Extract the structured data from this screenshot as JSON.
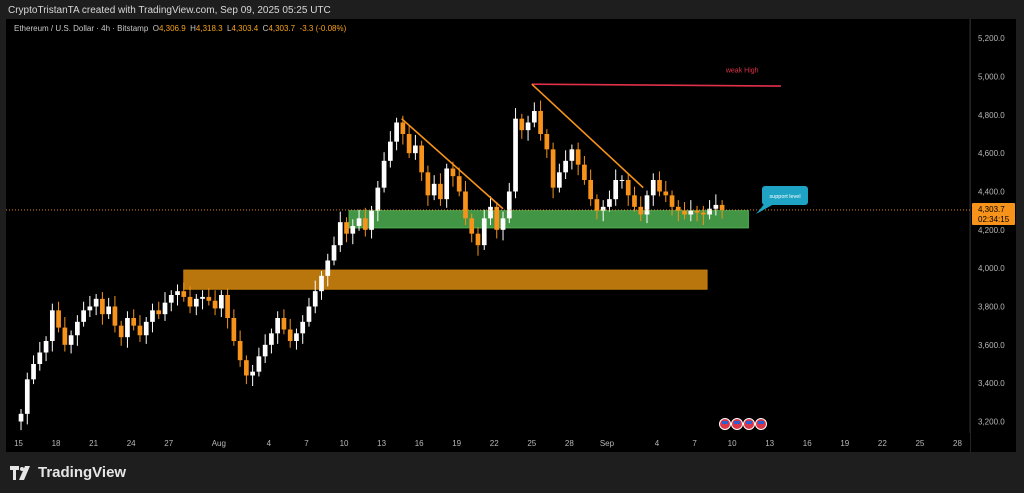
{
  "header": {
    "caption": "CryptoTristanTA created with TradingView.com, Sep 09, 2025 05:25 UTC"
  },
  "symbol": {
    "name": "Ethereum / U.S. Dollar · 4h · Bitstamp",
    "o_label": "O",
    "o": "4,306.9",
    "h_label": "H",
    "h": "4,318.3",
    "l_label": "L",
    "l": "4,303.4",
    "c_label": "C",
    "c": "4,303.7",
    "change": "-3.3 (-0.08%)"
  },
  "price_tag": {
    "price": "4,303.7",
    "countdown": "02:34:15"
  },
  "brand": {
    "name": "TradingView"
  },
  "colors": {
    "up": "#ffffff",
    "down": "#f7931a",
    "support": "#4caf50",
    "resistance": "#c27c0e",
    "weak_high": "#e0304a",
    "trend": "#f7931a",
    "callout": "#1fa3c4"
  },
  "chart_data": {
    "type": "candlestick",
    "title": "",
    "xlabel": "",
    "ylabel": "",
    "ylim": [
      3140,
      5300
    ],
    "y_ticks": [
      "5,200.0",
      "5,000.0",
      "4,800.0",
      "4,600.0",
      "4,400.0",
      "4,200.0",
      "4,000.0",
      "3,800.0",
      "3,600.0",
      "3,400.0",
      "3,200.0"
    ],
    "y_tick_values": [
      5200,
      5000,
      4800,
      4600,
      4400,
      4200,
      4000,
      3800,
      3600,
      3400,
      3200
    ],
    "x_ticks": [
      "15",
      "18",
      "21",
      "24",
      "27",
      "Aug",
      "4",
      "7",
      "10",
      "13",
      "16",
      "19",
      "22",
      "25",
      "28",
      "Sep",
      "4",
      "7",
      "10",
      "13",
      "16",
      "19",
      "22",
      "25",
      "28"
    ],
    "x_tick_days": [
      -17,
      -14,
      -11,
      -8,
      -5,
      -1,
      3,
      6,
      9,
      12,
      15,
      18,
      21,
      24,
      27,
      30,
      34,
      37,
      40,
      43,
      46,
      49,
      52,
      55,
      58
    ],
    "x_domain_days": [
      -18,
      59
    ],
    "last_price": 4303.7,
    "series": [
      {
        "values": [
          [
            -16.8,
            3240
          ],
          [
            -16.3,
            3420
          ],
          [
            -15.8,
            3500
          ],
          [
            -15.3,
            3560
          ],
          [
            -14.8,
            3620
          ],
          [
            -14.3,
            3780
          ],
          [
            -13.8,
            3690
          ],
          [
            -13.3,
            3600
          ],
          [
            -12.8,
            3650
          ],
          [
            -12.3,
            3720
          ],
          [
            -11.8,
            3780
          ],
          [
            -11.3,
            3800
          ],
          [
            -10.8,
            3840
          ],
          [
            -10.3,
            3760
          ],
          [
            -9.8,
            3800
          ],
          [
            -9.3,
            3700
          ],
          [
            -8.8,
            3640
          ],
          [
            -8.3,
            3740
          ],
          [
            -7.8,
            3700
          ],
          [
            -7.3,
            3650
          ],
          [
            -6.8,
            3720
          ],
          [
            -6.3,
            3780
          ],
          [
            -5.8,
            3760
          ],
          [
            -5.3,
            3820
          ],
          [
            -4.8,
            3860
          ],
          [
            -4.3,
            3880
          ],
          [
            -3.8,
            3850
          ],
          [
            -3.3,
            3800
          ],
          [
            -2.8,
            3840
          ],
          [
            -2.3,
            3850
          ],
          [
            -1.8,
            3830
          ],
          [
            -1.3,
            3790
          ],
          [
            -0.8,
            3860
          ],
          [
            -0.3,
            3740
          ],
          [
            0.2,
            3620
          ],
          [
            0.7,
            3520
          ],
          [
            1.2,
            3440
          ],
          [
            1.7,
            3460
          ],
          [
            2.2,
            3540
          ],
          [
            2.7,
            3600
          ],
          [
            3.2,
            3660
          ],
          [
            3.7,
            3740
          ],
          [
            4.2,
            3680
          ],
          [
            4.7,
            3620
          ],
          [
            5.2,
            3660
          ],
          [
            5.7,
            3720
          ],
          [
            6.2,
            3800
          ],
          [
            6.7,
            3880
          ],
          [
            7.2,
            3960
          ],
          [
            7.7,
            4040
          ],
          [
            8.2,
            4120
          ],
          [
            8.7,
            4240
          ],
          [
            9.2,
            4180
          ],
          [
            9.7,
            4220
          ],
          [
            10.2,
            4260
          ],
          [
            10.7,
            4200
          ],
          [
            11.2,
            4300
          ],
          [
            11.7,
            4420
          ],
          [
            12.2,
            4560
          ],
          [
            12.7,
            4660
          ],
          [
            13.2,
            4760
          ],
          [
            13.7,
            4700
          ],
          [
            14.2,
            4600
          ],
          [
            14.7,
            4640
          ],
          [
            15.2,
            4500
          ],
          [
            15.7,
            4380
          ],
          [
            16.2,
            4440
          ],
          [
            16.7,
            4360
          ],
          [
            17.2,
            4520
          ],
          [
            17.7,
            4480
          ],
          [
            18.2,
            4400
          ],
          [
            18.7,
            4260
          ],
          [
            19.2,
            4180
          ],
          [
            19.7,
            4120
          ],
          [
            20.2,
            4260
          ],
          [
            20.7,
            4320
          ],
          [
            21.2,
            4200
          ],
          [
            21.7,
            4260
          ],
          [
            22.2,
            4400
          ],
          [
            22.7,
            4780
          ],
          [
            23.2,
            4720
          ],
          [
            23.7,
            4760
          ],
          [
            24.2,
            4820
          ],
          [
            24.7,
            4700
          ],
          [
            25.2,
            4620
          ],
          [
            25.7,
            4420
          ],
          [
            26.2,
            4500
          ],
          [
            26.7,
            4560
          ],
          [
            27.2,
            4620
          ],
          [
            27.7,
            4540
          ],
          [
            28.2,
            4460
          ],
          [
            28.7,
            4360
          ],
          [
            29.2,
            4300
          ],
          [
            29.7,
            4320
          ],
          [
            30.2,
            4360
          ],
          [
            30.7,
            4460
          ],
          [
            31.2,
            4460
          ],
          [
            31.7,
            4380
          ],
          [
            32.2,
            4320
          ],
          [
            32.7,
            4280
          ],
          [
            33.2,
            4380
          ],
          [
            33.7,
            4460
          ],
          [
            34.2,
            4400
          ],
          [
            34.7,
            4380
          ],
          [
            35.2,
            4320
          ],
          [
            35.7,
            4300
          ],
          [
            36.2,
            4280
          ],
          [
            36.7,
            4300
          ],
          [
            37.2,
            4290
          ],
          [
            37.7,
            4280
          ],
          [
            38.2,
            4310
          ],
          [
            38.7,
            4330
          ],
          [
            39.2,
            4304
          ]
        ]
      }
    ],
    "zones": [
      {
        "kind": "support",
        "from_day": 9.4,
        "to_day": 41.3,
        "low": 4210,
        "high": 4300
      },
      {
        "kind": "resistance",
        "from_day": -3.8,
        "to_day": 38.0,
        "low": 3890,
        "high": 3990
      }
    ],
    "annotations": {
      "weak_high_label": "weak High",
      "support_label": "support level"
    },
    "lines": [
      {
        "kind": "weak_high",
        "from": [
          24.0,
          4960
        ],
        "to": [
          43.9,
          4950
        ]
      },
      {
        "kind": "trend",
        "from": [
          13.6,
          4780
        ],
        "to": [
          21.7,
          4310
        ]
      },
      {
        "kind": "trend",
        "from": [
          24.0,
          4960
        ],
        "to": [
          32.9,
          4420
        ]
      }
    ]
  }
}
